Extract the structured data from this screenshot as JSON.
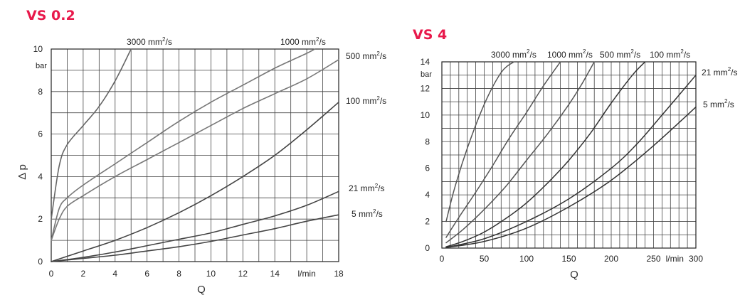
{
  "chart_data": [
    {
      "type": "line",
      "title": "VS 0.2",
      "xlabel": "Q",
      "ylabel": "Δ p",
      "x_unit": "l/min",
      "y_unit": "bar",
      "xlim": [
        0,
        18
      ],
      "ylim": [
        0,
        10
      ],
      "x_ticks": [
        "0",
        "2",
        "4",
        "6",
        "8",
        "10",
        "12",
        "14",
        "l/min",
        "18"
      ],
      "y_ticks": [
        "0",
        "2",
        "4",
        "6",
        "8",
        "10"
      ],
      "grid": true,
      "series": [
        {
          "name": "3000 mm²/s",
          "label_base": "3000 mm",
          "label_exp": "2",
          "label_tail": "/s",
          "color": "#666666",
          "points": [
            [
              0,
              2.0
            ],
            [
              0.5,
              4.5
            ],
            [
              1,
              5.5
            ],
            [
              2,
              6.4
            ],
            [
              3,
              7.3
            ],
            [
              4,
              8.5
            ],
            [
              5,
              10.0
            ]
          ]
        },
        {
          "name": "1000 mm²/s",
          "label_base": "1000 mm",
          "label_exp": "2",
          "label_tail": "/s",
          "color": "#777777",
          "points": [
            [
              0,
              1.0
            ],
            [
              0.5,
              2.5
            ],
            [
              1,
              3.0
            ],
            [
              2,
              3.6
            ],
            [
              4,
              4.6
            ],
            [
              6,
              5.6
            ],
            [
              8,
              6.6
            ],
            [
              10,
              7.5
            ],
            [
              12,
              8.3
            ],
            [
              14,
              9.1
            ],
            [
              16,
              9.8
            ],
            [
              16.5,
              10.0
            ]
          ]
        },
        {
          "name": "500 mm²/s",
          "label_base": "500 mm",
          "label_exp": "2",
          "label_tail": "/s",
          "color": "#777777",
          "points": [
            [
              0,
              1.0
            ],
            [
              0.5,
              2.0
            ],
            [
              1,
              2.6
            ],
            [
              2,
              3.1
            ],
            [
              4,
              4.0
            ],
            [
              6,
              4.8
            ],
            [
              8,
              5.6
            ],
            [
              10,
              6.4
            ],
            [
              12,
              7.2
            ],
            [
              14,
              7.9
            ],
            [
              16,
              8.6
            ],
            [
              18,
              9.5
            ]
          ]
        },
        {
          "name": "100 mm²/s",
          "label_base": "100 mm",
          "label_exp": "2",
          "label_tail": "/s",
          "color": "#444444",
          "points": [
            [
              0,
              0.0
            ],
            [
              2,
              0.5
            ],
            [
              4,
              1.0
            ],
            [
              6,
              1.6
            ],
            [
              8,
              2.3
            ],
            [
              10,
              3.1
            ],
            [
              12,
              4.0
            ],
            [
              14,
              5.0
            ],
            [
              16,
              6.2
            ],
            [
              18,
              7.5
            ]
          ]
        },
        {
          "name": "21 mm²/s",
          "label_base": "21 mm",
          "label_exp": "2",
          "label_tail": "/s",
          "color": "#444444",
          "points": [
            [
              0,
              0.0
            ],
            [
              2,
              0.2
            ],
            [
              4,
              0.45
            ],
            [
              6,
              0.75
            ],
            [
              8,
              1.05
            ],
            [
              10,
              1.35
            ],
            [
              12,
              1.75
            ],
            [
              14,
              2.15
            ],
            [
              16,
              2.65
            ],
            [
              18,
              3.3
            ]
          ]
        },
        {
          "name": "5 mm²/s",
          "label_base": "5 mm",
          "label_exp": "2",
          "label_tail": "/s",
          "color": "#444444",
          "points": [
            [
              0,
              0.0
            ],
            [
              2,
              0.15
            ],
            [
              4,
              0.3
            ],
            [
              6,
              0.5
            ],
            [
              8,
              0.7
            ],
            [
              10,
              0.95
            ],
            [
              12,
              1.25
            ],
            [
              14,
              1.55
            ],
            [
              16,
              1.9
            ],
            [
              18,
              2.2
            ]
          ]
        }
      ]
    },
    {
      "type": "line",
      "title": "VS 4",
      "xlabel": "Q",
      "x_unit": "l/min",
      "y_unit": "bar",
      "xlim": [
        0,
        300
      ],
      "ylim": [
        0,
        14
      ],
      "x_ticks": [
        "0",
        "50",
        "100",
        "150",
        "200",
        "250",
        "l/min",
        "300"
      ],
      "y_ticks": [
        "0",
        "2",
        "4",
        "6",
        "8",
        "10",
        "12",
        "14"
      ],
      "grid": true,
      "series": [
        {
          "name": "3000 mm²/s",
          "label_base": "3000 mm",
          "label_exp": "2",
          "label_tail": "/s",
          "color": "#555555",
          "points": [
            [
              5,
              2.0
            ],
            [
              15,
              4.5
            ],
            [
              30,
              7.5
            ],
            [
              50,
              10.8
            ],
            [
              70,
              13.2
            ],
            [
              85,
              14.0
            ]
          ]
        },
        {
          "name": "1000 mm²/s",
          "label_base": "1000 mm",
          "label_exp": "2",
          "label_tail": "/s",
          "color": "#555555",
          "points": [
            [
              5,
              0.8
            ],
            [
              20,
              2.3
            ],
            [
              40,
              4.2
            ],
            [
              60,
              6.2
            ],
            [
              80,
              8.3
            ],
            [
              100,
              10.2
            ],
            [
              120,
              12.2
            ],
            [
              140,
              14.0
            ]
          ]
        },
        {
          "name": "500 mm²/s",
          "label_base": "500 mm",
          "label_exp": "2",
          "label_tail": "/s",
          "color": "#555555",
          "points": [
            [
              5,
              0.4
            ],
            [
              25,
              1.4
            ],
            [
              50,
              2.9
            ],
            [
              75,
              4.6
            ],
            [
              100,
              6.6
            ],
            [
              125,
              8.6
            ],
            [
              150,
              10.8
            ],
            [
              165,
              12.3
            ],
            [
              180,
              14.0
            ]
          ]
        },
        {
          "name": "100 mm²/s",
          "label_base": "100 mm",
          "label_exp": "2",
          "label_tail": "/s",
          "color": "#333333",
          "points": [
            [
              5,
              0.1
            ],
            [
              25,
              0.5
            ],
            [
              50,
              1.2
            ],
            [
              75,
              2.2
            ],
            [
              100,
              3.4
            ],
            [
              125,
              4.9
            ],
            [
              150,
              6.6
            ],
            [
              175,
              8.6
            ],
            [
              200,
              10.9
            ],
            [
              225,
              13.0
            ],
            [
              240,
              14.0
            ]
          ]
        },
        {
          "name": "21 mm²/s",
          "label_base": "21 mm",
          "label_exp": "2",
          "label_tail": "/s",
          "color": "#333333",
          "points": [
            [
              5,
              0.05
            ],
            [
              50,
              0.7
            ],
            [
              100,
              2.0
            ],
            [
              150,
              3.7
            ],
            [
              200,
              6.0
            ],
            [
              230,
              7.8
            ],
            [
              260,
              10.0
            ],
            [
              300,
              13.0
            ]
          ]
        },
        {
          "name": "5 mm²/s",
          "label_base": "5 mm",
          "label_exp": "2",
          "label_tail": "/s",
          "color": "#333333",
          "points": [
            [
              5,
              0.05
            ],
            [
              50,
              0.5
            ],
            [
              100,
              1.5
            ],
            [
              150,
              3.1
            ],
            [
              200,
              5.1
            ],
            [
              250,
              7.7
            ],
            [
              300,
              10.6
            ]
          ]
        }
      ]
    }
  ]
}
